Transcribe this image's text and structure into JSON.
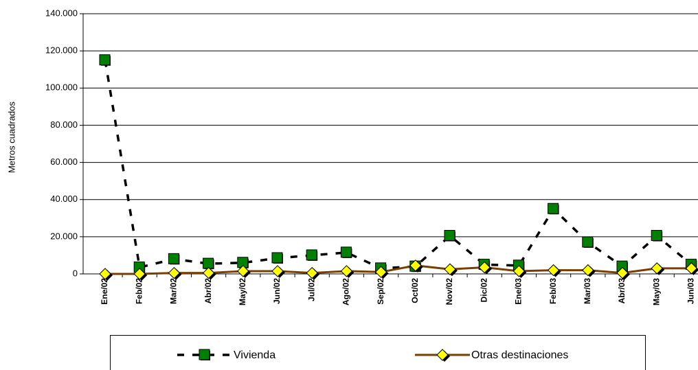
{
  "chart_data": {
    "type": "line",
    "y_label": "Metros cuadrados",
    "categories": [
      "Ene/02",
      "Feb/02",
      "Mar/02",
      "Abr/02",
      "May/02",
      "Jun/02",
      "Jul/02",
      "Ago/02",
      "Sep/02",
      "Oct/02",
      "Nov/02",
      "Dic/02",
      "Ene/03",
      "Feb/03",
      "Mar/03",
      "Abr/03",
      "May/03",
      "Jun/03"
    ],
    "series": [
      {
        "name": "Vivienda",
        "color": "#008000",
        "values": [
          115000,
          3500,
          8000,
          5500,
          6000,
          8500,
          10000,
          11500,
          3000,
          4000,
          20500,
          5000,
          4500,
          35000,
          17000,
          4000,
          20500,
          5000
        ]
      },
      {
        "name": "Otras destinaciones",
        "color": "#ffff00",
        "values": [
          0,
          0,
          500,
          500,
          1500,
          1500,
          500,
          1500,
          1000,
          4500,
          2500,
          3500,
          1500,
          2000,
          2000,
          500,
          3000,
          3000
        ]
      }
    ],
    "ylim": [
      0,
      140000
    ],
    "yticks": [
      0,
      {
        "value": 20000,
        "label": "20.000"
      },
      {
        "value": 40000,
        "label": "40.000"
      },
      {
        "value": 60000,
        "label": "60.000"
      },
      {
        "value": 80000,
        "label": "80.000"
      },
      {
        "value": 100000,
        "label": "100.000"
      },
      {
        "value": 120000,
        "label": "120.000"
      },
      {
        "value": 140000,
        "label": "140.000"
      }
    ],
    "grid": true
  }
}
